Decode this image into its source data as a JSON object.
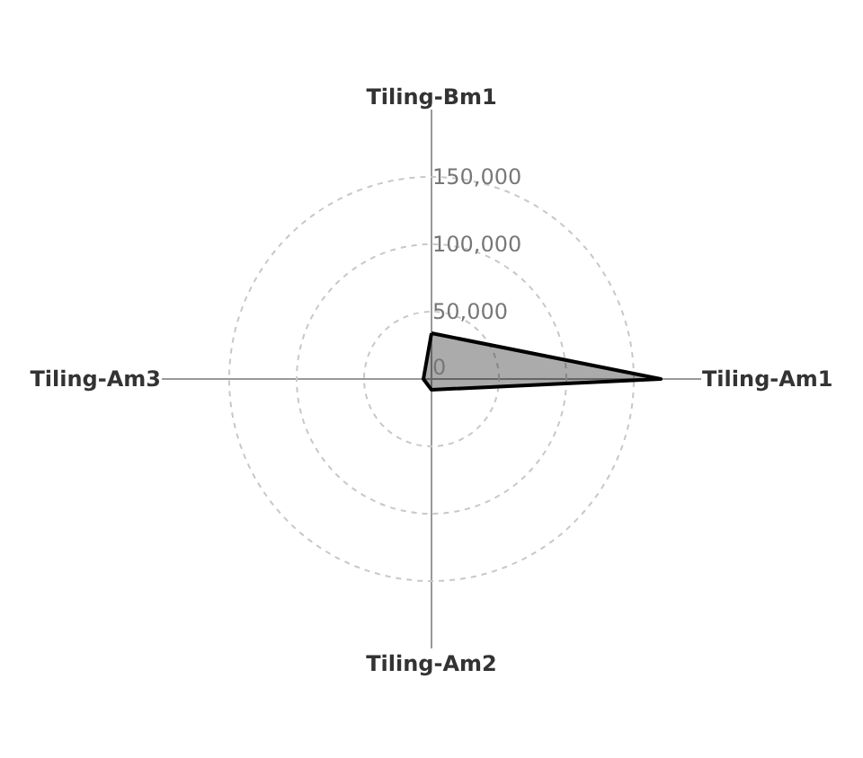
{
  "chart_data": {
    "type": "radar",
    "categories": [
      "Tiling-Bm1",
      "Tiling-Am1",
      "Tiling-Am2",
      "Tiling-Am3"
    ],
    "series": [
      {
        "color": "#000000",
        "values": [
          34000,
          170000,
          8000,
          6000
        ]
      }
    ],
    "ylim": [
      0,
      200000
    ],
    "yticks": [
      {
        "value": 0,
        "label": "0"
      },
      {
        "value": 50000,
        "label": "50,000"
      },
      {
        "value": 100000,
        "label": "100,000"
      },
      {
        "value": 150000,
        "label": "150,000"
      }
    ],
    "grid": true,
    "marker": "none",
    "line_style": "solid"
  }
}
